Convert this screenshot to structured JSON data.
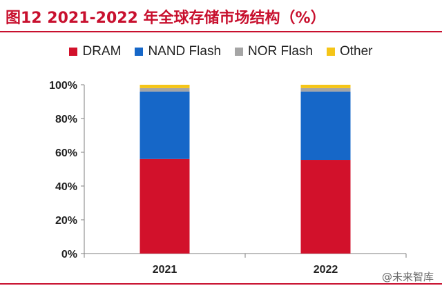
{
  "header": {
    "title": "图12  2021-2022 年全球存储市场结构（%）"
  },
  "watermark": "@未来智库",
  "colors": {
    "accent": "#c8102e",
    "DRAM": "#d2112b",
    "NAND Flash": "#1667c8",
    "NOR Flash": "#a5a5a5",
    "Other": "#f5c518"
  },
  "chart_data": {
    "type": "bar",
    "stacked": true,
    "title": "2021-2022 年全球存储市场结构（%）",
    "xlabel": "",
    "ylabel": "",
    "ylim": [
      0,
      100
    ],
    "yticks": [
      "0%",
      "20%",
      "40%",
      "60%",
      "80%",
      "100%"
    ],
    "categories": [
      "2021",
      "2022"
    ],
    "legend_position": "top",
    "series": [
      {
        "name": "DRAM",
        "values": [
          56,
          55.5
        ]
      },
      {
        "name": "NAND Flash",
        "values": [
          40,
          40.5
        ]
      },
      {
        "name": "NOR Flash",
        "values": [
          2,
          2
        ]
      },
      {
        "name": "Other",
        "values": [
          2,
          2
        ]
      }
    ]
  }
}
